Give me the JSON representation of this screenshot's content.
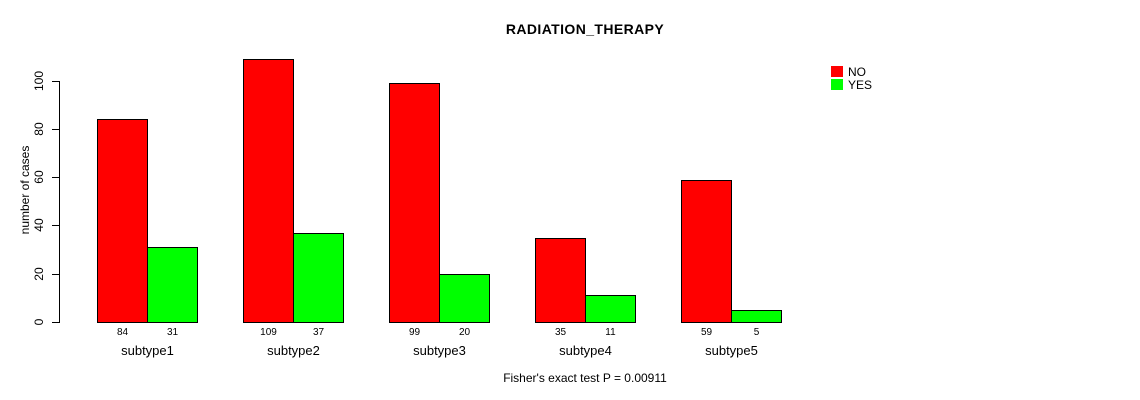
{
  "chart_data": {
    "type": "bar",
    "title": "RADIATION_THERAPY",
    "xlabel": "",
    "ylabel": "number of cases",
    "categories": [
      "subtype1",
      "subtype2",
      "subtype3",
      "subtype4",
      "subtype5"
    ],
    "series": [
      {
        "name": "NO",
        "color": "#ff0000",
        "values": [
          84,
          109,
          99,
          35,
          59
        ]
      },
      {
        "name": "YES",
        "color": "#00ff00",
        "values": [
          31,
          37,
          20,
          11,
          5
        ]
      }
    ],
    "yticks": [
      0,
      20,
      40,
      60,
      80,
      100
    ],
    "ylim": [
      0,
      100
    ],
    "grid": false,
    "value_labels_shown": true,
    "legend_position": "top-right",
    "annotation": "Fisher's exact test P = 0.00911"
  }
}
